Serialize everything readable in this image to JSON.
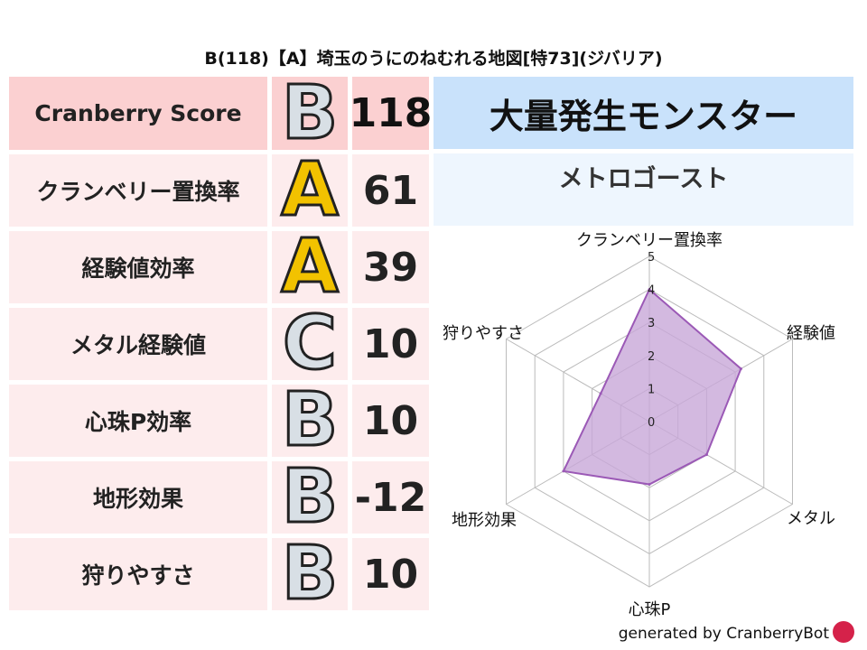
{
  "title": "B(118)【A】埼玉のうにのねむれる地図[特73](ジバリア)",
  "score_table": {
    "header": {
      "label": "Cranberry Score",
      "grade": "B",
      "value": "118"
    },
    "rows": [
      {
        "label": "クランベリー置換率",
        "grade": "A",
        "value": "61"
      },
      {
        "label": "経験値効率",
        "grade": "A",
        "value": "39"
      },
      {
        "label": "メタル経験値",
        "grade": "C",
        "value": "10"
      },
      {
        "label": "心珠P効率",
        "grade": "B",
        "value": "10"
      },
      {
        "label": "地形効果",
        "grade": "B",
        "value": "-12"
      },
      {
        "label": "狩りやすさ",
        "grade": "B",
        "value": "10"
      }
    ]
  },
  "monster_panel": {
    "heading": "大量発生モンスター",
    "monster": "メトロゴースト"
  },
  "chart_data": {
    "type": "radar",
    "axes": [
      "クランベリー置換率",
      "経験値",
      "メタル",
      "心珠P",
      "地形効果",
      "狩りやすさ"
    ],
    "values": [
      4,
      3.2,
      2,
      1.9,
      3,
      1.7
    ],
    "rlim": [
      0,
      5
    ],
    "ticks": [
      "0",
      "1",
      "2",
      "3",
      "4",
      "5"
    ],
    "colors": {
      "fill": "#c8a8d8",
      "stroke": "#9b59b6",
      "grid": "#bbbbbb"
    }
  },
  "footer": {
    "credit": "generated by CranberryBot",
    "logo_icon": "cranberry-mascot-icon"
  }
}
